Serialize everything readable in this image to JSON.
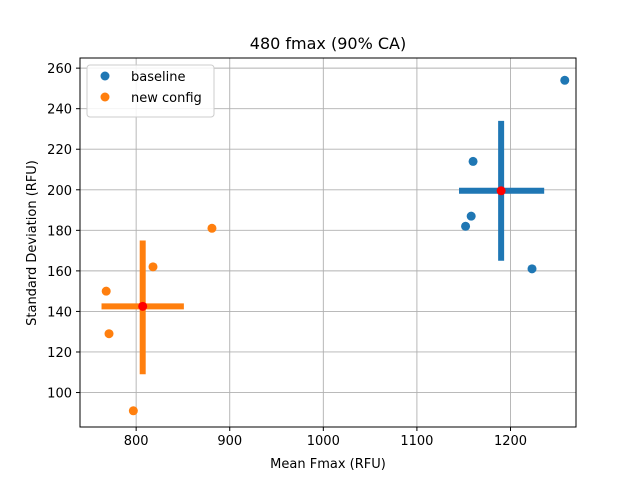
{
  "chart_data": {
    "type": "scatter",
    "title": "480 fmax (90% CA)",
    "xlabel": "Mean Fmax (RFU)",
    "ylabel": "Standard Deviation (RFU)",
    "xlim": [
      740,
      1270
    ],
    "ylim": [
      83,
      265
    ],
    "xticks": [
      800,
      900,
      1000,
      1100,
      1200
    ],
    "yticks": [
      100,
      120,
      140,
      160,
      180,
      200,
      220,
      240,
      260
    ],
    "grid": true,
    "legend_position": "top-left",
    "series": [
      {
        "name": "baseline",
        "color": "#1f77b4",
        "points": [
          {
            "x": 1258,
            "y": 254
          },
          {
            "x": 1160,
            "y": 214
          },
          {
            "x": 1158,
            "y": 187
          },
          {
            "x": 1152,
            "y": 182
          },
          {
            "x": 1223,
            "y": 161
          }
        ],
        "summary": {
          "center": {
            "x": 1190,
            "y": 199.5
          },
          "x_interval": [
            1145,
            1236
          ],
          "y_interval": [
            165,
            234
          ],
          "center_color": "#ff0000"
        }
      },
      {
        "name": "new config",
        "color": "#ff7f0e",
        "points": [
          {
            "x": 881,
            "y": 181
          },
          {
            "x": 818,
            "y": 162
          },
          {
            "x": 768,
            "y": 150
          },
          {
            "x": 771,
            "y": 129
          },
          {
            "x": 797,
            "y": 91
          }
        ],
        "summary": {
          "center": {
            "x": 807,
            "y": 142.5
          },
          "x_interval": [
            763,
            851
          ],
          "y_interval": [
            109,
            175
          ],
          "center_color": "#ff0000"
        }
      }
    ]
  }
}
